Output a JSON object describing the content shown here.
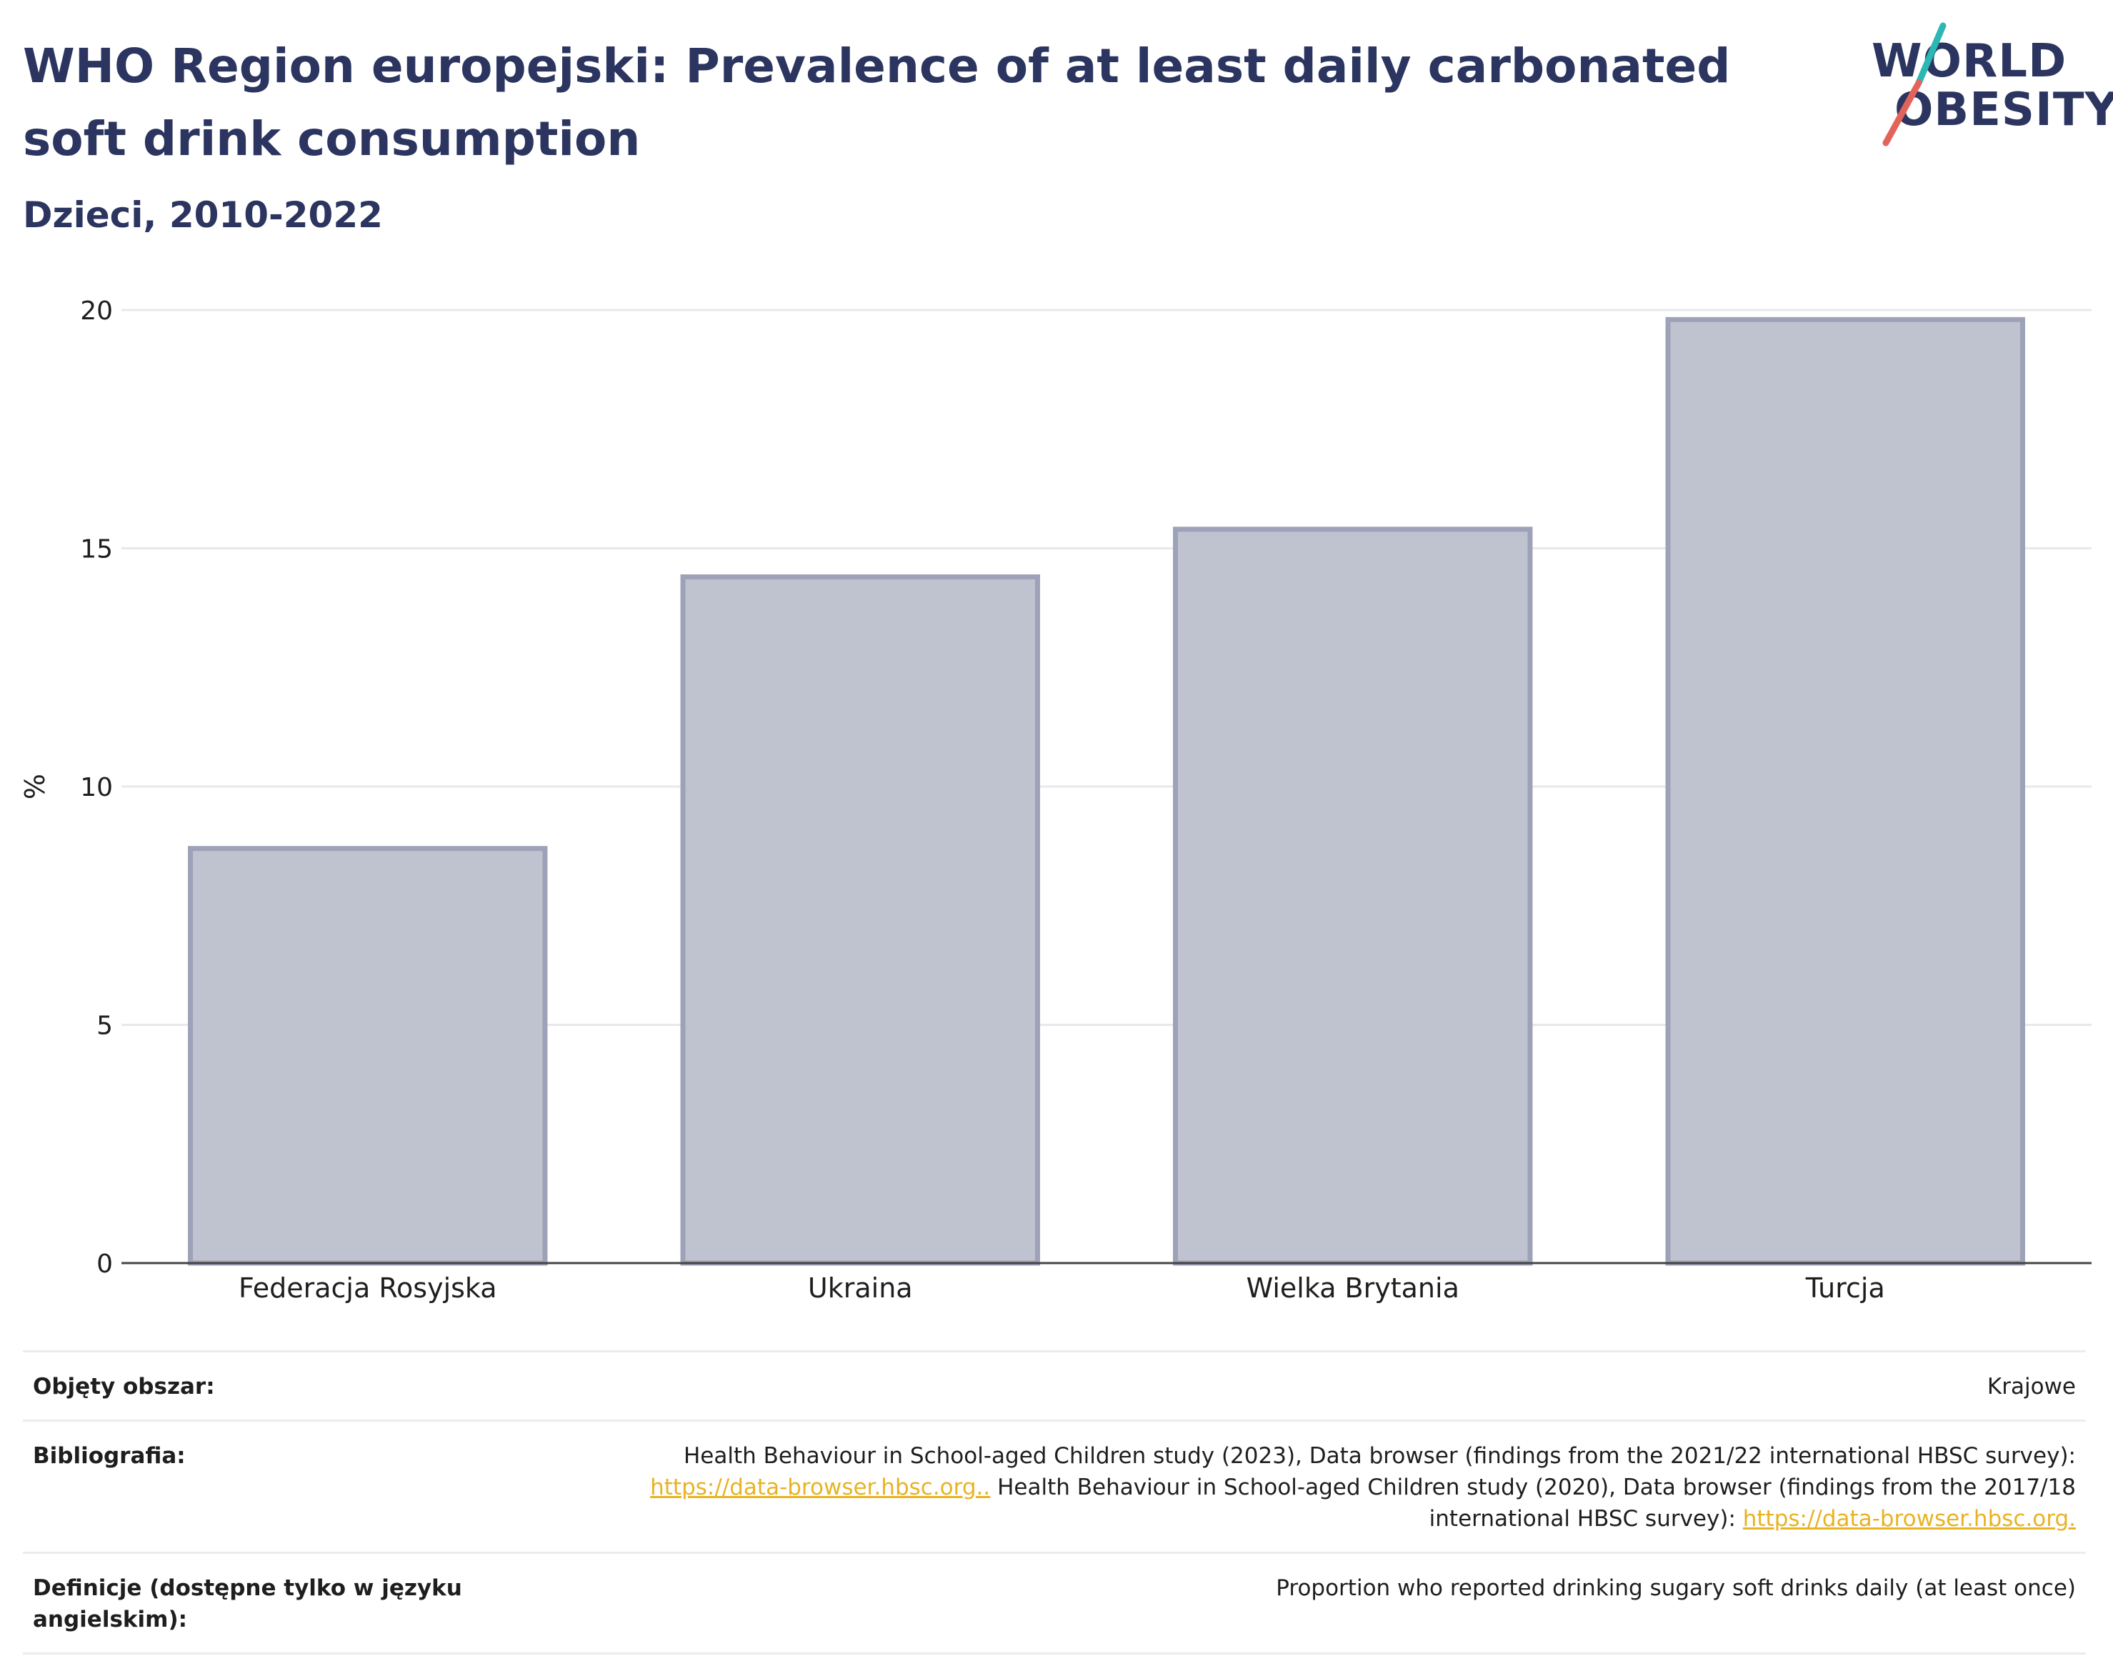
{
  "title": "WHO Region europejski: Prevalence of at least daily carbonated soft drink consumption",
  "subtitle": "Dzieci, 2010-2022",
  "logo": {
    "line1": "WORLD",
    "line2": "OBESITY"
  },
  "chart_data": {
    "type": "bar",
    "title": "WHO Region europejski: Prevalence of at least daily carbonated soft drink consumption",
    "subtitle": "Dzieci, 2010-2022",
    "categories": [
      "Federacja Rosyjska",
      "Ukraina",
      "Wielka Brytania",
      "Turcja"
    ],
    "values": [
      8.7,
      14.4,
      15.4,
      19.8
    ],
    "xlabel": "",
    "ylabel": "%",
    "ylim": [
      0,
      20
    ],
    "yticks": [
      0,
      5,
      10,
      15,
      20
    ],
    "grid": true,
    "bar_color": "#bfc2cf",
    "bar_border_color": "#9ea2b8"
  },
  "meta": {
    "coverage": {
      "label": "Objęty obszar:",
      "value": "Krajowe"
    },
    "bibliography": {
      "label": "Bibliografia:",
      "text1": "Health Behaviour in School-aged Children study (2023), Data browser (findings from the 2021/22 international HBSC survey):",
      "link1": "https://data-browser.hbsc.org..",
      "text2": " Health Behaviour in School-aged Children study (2020), Data browser (findings from the 2017/18 international HBSC survey): ",
      "link2": "https://data-browser.hbsc.org."
    },
    "definitions": {
      "label": "Definicje (dostępne tylko w języku angielskim):",
      "value": "Proportion who reported drinking sugary soft drinks daily (at least once)"
    }
  }
}
